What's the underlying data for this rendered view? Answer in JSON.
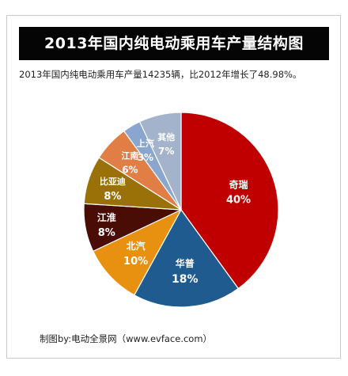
{
  "title": "2013年国内纯电动乘用车产量结构图",
  "subtitle": "2013年国内纯电动乘用车产量14235辆，比2012年增长了48.98%。",
  "source": "制图by:电动全景网（www.evface.com）",
  "chart_data": {
    "type": "pie",
    "title": "2013年国内纯电动乘用车产量结构图",
    "slices": [
      {
        "label": "奇瑞",
        "value": 40,
        "value_label": "40%",
        "color": "#c00000"
      },
      {
        "label": "华普",
        "value": 18,
        "value_label": "18%",
        "color": "#1f5b8e"
      },
      {
        "label": "北汽",
        "value": 10,
        "value_label": "10%",
        "color": "#e8900f"
      },
      {
        "label": "江淮",
        "value": 8,
        "value_label": "8%",
        "color": "#4a0d05"
      },
      {
        "label": "比亚迪",
        "value": 8,
        "value_label": "8%",
        "color": "#9a7108"
      },
      {
        "label": "江南",
        "value": 6,
        "value_label": "6%",
        "color": "#e07e45"
      },
      {
        "label": "上汽",
        "value": 3,
        "value_label": "3%",
        "color": "#8aa6cf"
      },
      {
        "label": "其他",
        "value": 7,
        "value_label": "7%",
        "color": "#a2b3cb"
      }
    ],
    "start_angle": "12 o'clock",
    "direction": "clockwise",
    "legend": "none",
    "labels_inside_slices": true
  }
}
